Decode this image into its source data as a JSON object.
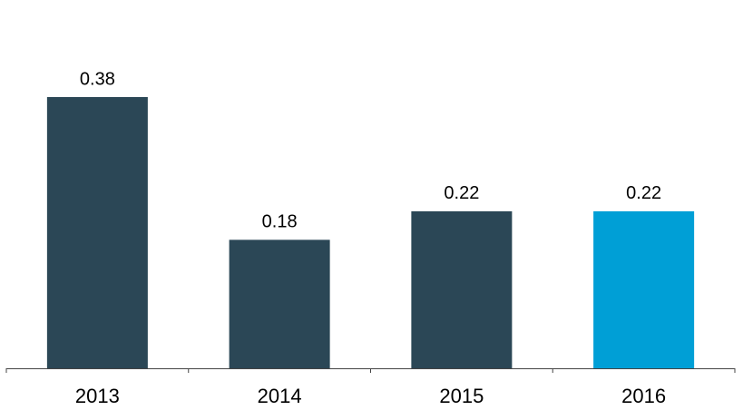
{
  "chart_data": {
    "type": "bar",
    "categories": [
      "2013",
      "2014",
      "2015",
      "2016"
    ],
    "values": [
      0.38,
      0.18,
      0.22,
      0.22
    ],
    "colors": [
      "#2b4756",
      "#2b4756",
      "#2b4756",
      "#009fd6"
    ]
  }
}
